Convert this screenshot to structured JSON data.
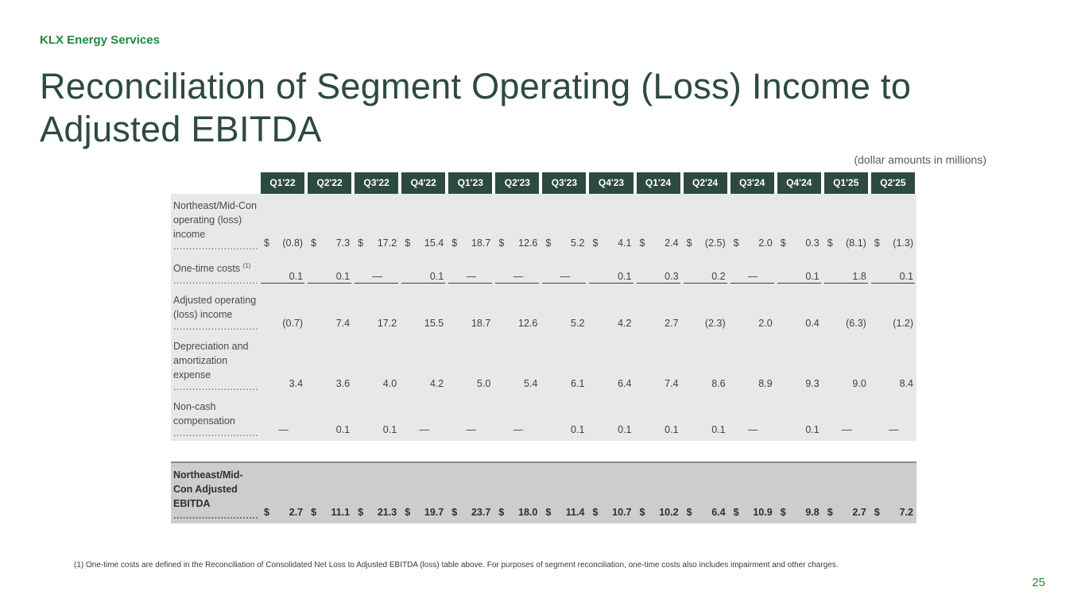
{
  "brand": "KLX Energy Services",
  "title": "Reconciliation of Segment Operating (Loss) Income to Adjusted EBITDA",
  "units_note": "(dollar amounts in millions)",
  "dot_leader": "............................",
  "currency": "$",
  "table": {
    "columns": [
      "Q1'22",
      "Q2'22",
      "Q3'22",
      "Q4'22",
      "Q1'23",
      "Q2'23",
      "Q3'23",
      "Q4'23",
      "Q1'24",
      "Q2'24",
      "Q3'24",
      "Q4'24",
      "Q1'25",
      "Q2'25"
    ],
    "rows": [
      {
        "label": "Northeast/Mid-Con operating (loss) income",
        "footnote": "",
        "currency": true,
        "underline": false,
        "values": [
          "(0.8)",
          "7.3",
          "17.2",
          "15.4",
          "18.7",
          "12.6",
          "5.2",
          "4.1",
          "2.4",
          "(2.5)",
          "2.0",
          "0.3",
          "(8.1)",
          "(1.3)"
        ]
      },
      {
        "label": "One-time costs",
        "footnote": "(1)",
        "currency": false,
        "underline": true,
        "values": [
          "0.1",
          "0.1",
          "—",
          "0.1",
          "—",
          "—",
          "—",
          "0.1",
          "0.3",
          "0.2",
          "—",
          "0.1",
          "1.8",
          "0.1"
        ]
      },
      {
        "label": "Adjusted operating (loss) income",
        "footnote": "",
        "currency": false,
        "underline": false,
        "values": [
          "(0.7)",
          "7.4",
          "17.2",
          "15.5",
          "18.7",
          "12.6",
          "5.2",
          "4.2",
          "2.7",
          "(2.3)",
          "2.0",
          "0.4",
          "(6.3)",
          "(1.2)"
        ]
      },
      {
        "label": "Depreciation and amortization expense",
        "footnote": "",
        "currency": false,
        "underline": false,
        "values": [
          "3.4",
          "3.6",
          "4.0",
          "4.2",
          "5.0",
          "5.4",
          "6.1",
          "6.4",
          "7.4",
          "8.6",
          "8.9",
          "9.3",
          "9.0",
          "8.4"
        ]
      },
      {
        "label": "Non-cash compensation",
        "footnote": "",
        "currency": false,
        "underline": false,
        "values": [
          "—",
          "0.1",
          "0.1",
          "—",
          "—",
          "—",
          "0.1",
          "0.1",
          "0.1",
          "0.1",
          "—",
          "0.1",
          "—",
          "—"
        ]
      }
    ],
    "total": {
      "label": "Northeast/Mid-Con Adjusted EBITDA",
      "currency": true,
      "values": [
        "2.7",
        "11.1",
        "21.3",
        "19.7",
        "23.7",
        "18.0",
        "11.4",
        "10.7",
        "10.2",
        "6.4",
        "10.9",
        "9.8",
        "2.7",
        "7.2"
      ]
    }
  },
  "footnote": "(1) One-time costs are defined in the Reconciliation of Consolidated Net Loss to Adjusted EBITDA (loss) table above. For purposes of segment reconciliation, one-time costs also includes impairment and other charges.",
  "page_number": "25"
}
